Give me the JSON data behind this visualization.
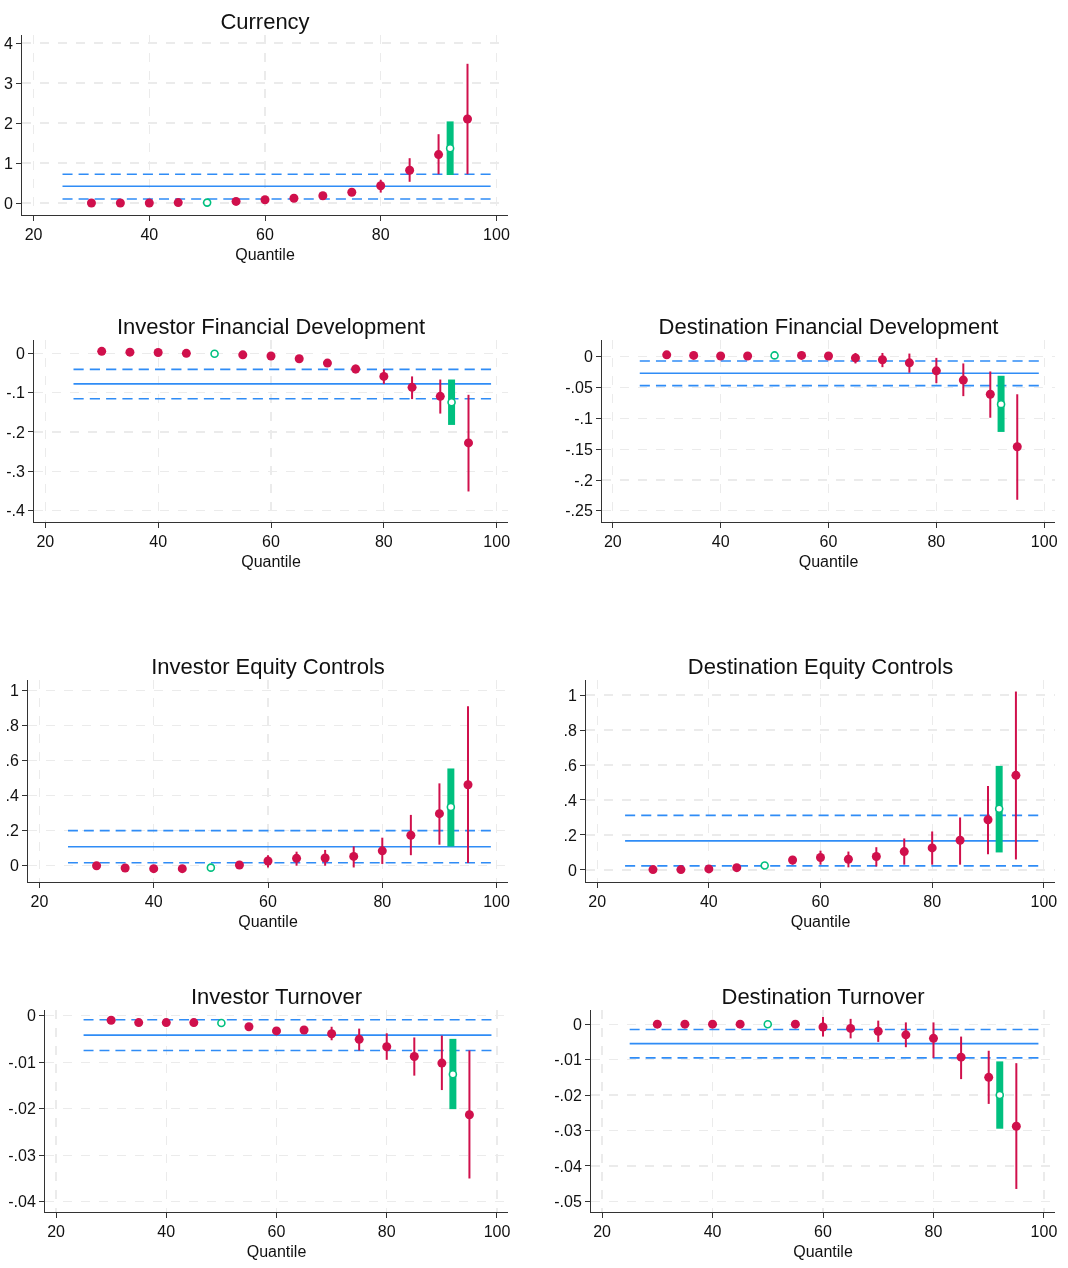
{
  "chart_data": [
    {
      "type": "scatter",
      "title": "Currency",
      "xlabel": "Quantile",
      "xlim": [
        18,
        102
      ],
      "xticks": [
        20,
        40,
        60,
        80,
        100
      ],
      "ylim": [
        -0.3,
        4.2
      ],
      "yticks": [
        0,
        1,
        2,
        3,
        4
      ],
      "grid": true,
      "marker": "circle",
      "series": [
        {
          "color": "#d0104c",
          "x": [
            30,
            35,
            40,
            45,
            55,
            60,
            65,
            70,
            75,
            80,
            85,
            90,
            95
          ],
          "values": [
            0,
            0,
            0,
            0.01,
            0.04,
            0.08,
            0.12,
            0.18,
            0.27,
            0.43,
            0.82,
            1.21,
            2.1
          ],
          "errors": [
            null,
            null,
            null,
            null,
            null,
            null,
            null,
            null,
            null,
            [
              0.26,
              0.58
            ],
            [
              0.53,
              1.12
            ],
            [
              0.72,
              1.72
            ],
            [
              0.72,
              3.48
            ]
          ]
        },
        {
          "color": "#00c07f",
          "x": [
            50,
            92
          ],
          "values": [
            0.01,
            1.37
          ],
          "errors": [
            null,
            [
              0.7,
              2.04
            ]
          ]
        },
        {
          "type": "line",
          "marker": "none",
          "color": "#2f8cf6",
          "line_style": "dashed",
          "x": [
            25,
            99
          ],
          "values": [
            0.72,
            0.72
          ]
        },
        {
          "type": "line",
          "marker": "none",
          "color": "#2f8cf6",
          "line_style": "solid",
          "x": [
            25,
            99
          ],
          "values": [
            0.42,
            0.42
          ]
        },
        {
          "type": "line",
          "marker": "none",
          "color": "#2f8cf6",
          "line_style": "dashed",
          "x": [
            25,
            99
          ],
          "values": [
            0.1,
            0.1
          ]
        }
      ]
    },
    {
      "type": "scatter",
      "title": "Investor Financial Development",
      "xlabel": "Quantile",
      "xlim": [
        18,
        102
      ],
      "xticks": [
        20,
        40,
        60,
        80,
        100
      ],
      "ylim": [
        -0.43,
        0.035
      ],
      "yticks": [
        0,
        {
          "value": -0.1,
          "label": "-.1"
        },
        {
          "value": -0.2,
          "label": "-.2"
        },
        {
          "value": -0.3,
          "label": "-.3"
        },
        {
          "value": -0.4,
          "label": "-.4"
        }
      ],
      "grid": true,
      "marker": "circle",
      "series": [
        {
          "color": "#d0104c",
          "x": [
            30,
            35,
            40,
            45,
            55,
            60,
            65,
            70,
            75,
            80,
            85,
            90,
            95
          ],
          "values": [
            0.006,
            0.004,
            0.003,
            0.001,
            -0.003,
            -0.006,
            -0.013,
            -0.024,
            -0.039,
            -0.058,
            -0.086,
            -0.109,
            -0.228
          ],
          "errors": [
            null,
            null,
            null,
            null,
            null,
            null,
            null,
            null,
            [
              -0.05,
              -0.028
            ],
            [
              -0.077,
              -0.04
            ],
            [
              -0.116,
              -0.058
            ],
            [
              -0.153,
              -0.066
            ],
            [
              -0.352,
              -0.105
            ]
          ]
        },
        {
          "color": "#00c07f",
          "x": [
            50,
            92
          ],
          "values": [
            0,
            -0.124
          ],
          "errors": [
            null,
            [
              -0.182,
              -0.066
            ]
          ]
        },
        {
          "type": "line",
          "marker": "none",
          "color": "#2f8cf6",
          "line_style": "dashed",
          "x": [
            25,
            99
          ],
          "values": [
            -0.04,
            -0.04
          ]
        },
        {
          "type": "line",
          "marker": "none",
          "color": "#2f8cf6",
          "line_style": "solid",
          "x": [
            25,
            99
          ],
          "values": [
            -0.077,
            -0.077
          ]
        },
        {
          "type": "line",
          "marker": "none",
          "color": "#2f8cf6",
          "line_style": "dashed",
          "x": [
            25,
            99
          ],
          "values": [
            -0.115,
            -0.115
          ]
        }
      ]
    },
    {
      "type": "scatter",
      "title": "Destination Financial Development",
      "xlabel": "Quantile",
      "xlim": [
        18,
        102
      ],
      "xticks": [
        20,
        40,
        60,
        80,
        100
      ],
      "ylim": [
        -0.268,
        0.027
      ],
      "yticks": [
        0,
        {
          "value": -0.05,
          "label": "-.05"
        },
        {
          "value": -0.1,
          "label": "-.1"
        },
        {
          "value": -0.15,
          "label": "-.15"
        },
        {
          "value": -0.2,
          "label": "-.2"
        },
        {
          "value": -0.25,
          "label": "-.25"
        }
      ],
      "grid": true,
      "marker": "circle",
      "series": [
        {
          "color": "#d0104c",
          "x": [
            30,
            35,
            40,
            45,
            55,
            60,
            65,
            70,
            75,
            80,
            85,
            90,
            95
          ],
          "values": [
            0.003,
            0.002,
            0.001,
            0.001,
            0.002,
            0.001,
            -0.002,
            -0.005,
            -0.01,
            -0.023,
            -0.038,
            -0.061,
            -0.146
          ],
          "errors": [
            null,
            null,
            null,
            null,
            null,
            null,
            [
              -0.011,
              0.006
            ],
            [
              -0.017,
              0.006
            ],
            [
              -0.026,
              0.005
            ],
            [
              -0.043,
              -0.002
            ],
            [
              -0.064,
              -0.011
            ],
            [
              -0.099,
              -0.024
            ],
            [
              -0.232,
              -0.061
            ]
          ]
        },
        {
          "color": "#00c07f",
          "x": [
            50,
            92
          ],
          "values": [
            0.002,
            -0.077
          ],
          "errors": [
            null,
            [
              -0.122,
              -0.031
            ]
          ]
        },
        {
          "type": "line",
          "marker": "none",
          "color": "#2f8cf6",
          "line_style": "dashed",
          "x": [
            25,
            99
          ],
          "values": [
            -0.007,
            -0.007
          ]
        },
        {
          "type": "line",
          "marker": "none",
          "color": "#2f8cf6",
          "line_style": "solid",
          "x": [
            25,
            99
          ],
          "values": [
            -0.027,
            -0.027
          ]
        },
        {
          "type": "line",
          "marker": "none",
          "color": "#2f8cf6",
          "line_style": "dashed",
          "x": [
            25,
            99
          ],
          "values": [
            -0.047,
            -0.047
          ]
        }
      ]
    },
    {
      "type": "scatter",
      "title": "Investor Equity Controls",
      "xlabel": "Quantile",
      "xlim": [
        18,
        102
      ],
      "xticks": [
        20,
        40,
        60,
        80,
        100
      ],
      "ylim": [
        -0.093,
        1.06
      ],
      "yticks": [
        0,
        {
          "value": 0.2,
          "label": ".2"
        },
        {
          "value": 0.4,
          "label": ".4"
        },
        {
          "value": 0.6,
          "label": ".6"
        },
        {
          "value": 0.8,
          "label": ".8"
        },
        1
      ],
      "grid": true,
      "marker": "circle",
      "series": [
        {
          "color": "#d0104c",
          "x": [
            30,
            35,
            40,
            45,
            55,
            60,
            65,
            70,
            75,
            80,
            85,
            90,
            95
          ],
          "values": [
            0,
            -0.013,
            -0.017,
            -0.017,
            0.004,
            0.027,
            0.042,
            0.044,
            0.053,
            0.085,
            0.174,
            0.297,
            0.462
          ],
          "errors": [
            null,
            null,
            null,
            null,
            null,
            [
              -0.01,
              0.06
            ],
            [
              0,
              0.08
            ],
            [
              0,
              0.09
            ],
            [
              -0.01,
              0.11
            ],
            [
              0.01,
              0.16
            ],
            [
              0.06,
              0.29
            ],
            [
              0.12,
              0.47
            ],
            [
              0.015,
              0.91
            ]
          ]
        },
        {
          "color": "#00c07f",
          "x": [
            50,
            92
          ],
          "values": [
            -0.011,
            0.335
          ],
          "errors": [
            null,
            [
              0.11,
              0.555
            ]
          ]
        },
        {
          "type": "line",
          "marker": "none",
          "color": "#2f8cf6",
          "line_style": "dashed",
          "x": [
            25,
            99
          ],
          "values": [
            0.2,
            0.2
          ]
        },
        {
          "type": "line",
          "marker": "none",
          "color": "#2f8cf6",
          "line_style": "solid",
          "x": [
            25,
            99
          ],
          "values": [
            0.108,
            0.108
          ]
        },
        {
          "type": "line",
          "marker": "none",
          "color": "#2f8cf6",
          "line_style": "dashed",
          "x": [
            25,
            99
          ],
          "values": [
            0.017,
            0.017
          ]
        }
      ]
    },
    {
      "type": "scatter",
      "title": "Destination Equity Controls",
      "xlabel": "Quantile",
      "xlim": [
        18,
        102
      ],
      "xticks": [
        20,
        40,
        60,
        80,
        100
      ],
      "ylim": [
        -0.069,
        1.086
      ],
      "yticks": [
        0,
        {
          "value": 0.2,
          "label": ".2"
        },
        {
          "value": 0.4,
          "label": ".4"
        },
        {
          "value": 0.6,
          "label": ".6"
        },
        {
          "value": 0.8,
          "label": ".8"
        },
        1
      ],
      "grid": true,
      "marker": "circle",
      "series": [
        {
          "color": "#d0104c",
          "x": [
            30,
            35,
            40,
            45,
            55,
            60,
            65,
            70,
            75,
            80,
            85,
            90,
            95
          ],
          "values": [
            0.002,
            0.002,
            0.006,
            0.013,
            0.057,
            0.071,
            0.061,
            0.077,
            0.105,
            0.126,
            0.17,
            0.287,
            0.541
          ],
          "errors": [
            null,
            null,
            null,
            null,
            [
              0.03,
              0.08
            ],
            [
              0.03,
              0.11
            ],
            [
              0.015,
              0.105
            ],
            [
              0.02,
              0.13
            ],
            [
              0.03,
              0.18
            ],
            [
              0.03,
              0.22
            ],
            [
              0.03,
              0.3
            ],
            [
              0.09,
              0.48
            ],
            [
              0.06,
              1.02
            ]
          ]
        },
        {
          "color": "#00c07f",
          "x": [
            50,
            92
          ],
          "values": [
            0.025,
            0.35
          ],
          "errors": [
            null,
            [
              0.1,
              0.595
            ]
          ]
        },
        {
          "type": "line",
          "marker": "none",
          "color": "#2f8cf6",
          "line_style": "dashed",
          "x": [
            25,
            99
          ],
          "values": [
            0.312,
            0.312
          ]
        },
        {
          "type": "line",
          "marker": "none",
          "color": "#2f8cf6",
          "line_style": "solid",
          "x": [
            25,
            99
          ],
          "values": [
            0.166,
            0.166
          ]
        },
        {
          "type": "line",
          "marker": "none",
          "color": "#2f8cf6",
          "line_style": "dashed",
          "x": [
            25,
            99
          ],
          "values": [
            0.023,
            0.023
          ]
        }
      ]
    },
    {
      "type": "scatter",
      "title": "Investor Turnover",
      "xlabel": "Quantile",
      "xlim": [
        18,
        102
      ],
      "xticks": [
        20,
        40,
        60,
        80,
        100
      ],
      "ylim": [
        -0.0422,
        0.0012
      ],
      "yticks": [
        0,
        {
          "value": -0.01,
          "label": "-.01"
        },
        {
          "value": -0.02,
          "label": "-.02"
        },
        {
          "value": -0.03,
          "label": "-.03"
        },
        {
          "value": -0.04,
          "label": "-.04"
        }
      ],
      "grid": true,
      "marker": "circle",
      "series": [
        {
          "color": "#d0104c",
          "x": [
            30,
            35,
            40,
            45,
            55,
            60,
            65,
            70,
            75,
            80,
            85,
            90,
            95
          ],
          "values": [
            -0.001,
            -0.0015,
            -0.0015,
            -0.0015,
            -0.0024,
            -0.0033,
            -0.0031,
            -0.0039,
            -0.0051,
            -0.0067,
            -0.0088,
            -0.0102,
            -0.0213
          ],
          "errors": [
            null,
            null,
            null,
            null,
            null,
            null,
            null,
            [
              -0.0053,
              -0.0024
            ],
            [
              -0.0075,
              -0.0028
            ],
            [
              -0.0095,
              -0.0038
            ],
            [
              -0.0129,
              -0.0047
            ],
            [
              -0.016,
              -0.0043
            ],
            [
              -0.035,
              -0.0075
            ]
          ]
        },
        {
          "color": "#00c07f",
          "x": [
            50,
            92
          ],
          "values": [
            -0.0016,
            -0.0126
          ],
          "errors": [
            null,
            [
              -0.0201,
              -0.005
            ]
          ]
        },
        {
          "type": "line",
          "marker": "none",
          "color": "#2f8cf6",
          "line_style": "dashed",
          "x": [
            25,
            99
          ],
          "values": [
            -0.0009,
            -0.0009
          ]
        },
        {
          "type": "line",
          "marker": "none",
          "color": "#2f8cf6",
          "line_style": "solid",
          "x": [
            25,
            99
          ],
          "values": [
            -0.0042,
            -0.0042
          ]
        },
        {
          "type": "line",
          "marker": "none",
          "color": "#2f8cf6",
          "line_style": "dashed",
          "x": [
            25,
            99
          ],
          "values": [
            -0.0075,
            -0.0075
          ]
        }
      ]
    },
    {
      "type": "scatter",
      "title": "Destination Turnover",
      "xlabel": "Quantile",
      "xlim": [
        18,
        102
      ],
      "xticks": [
        20,
        40,
        60,
        80,
        100
      ],
      "ylim": [
        -0.053,
        0.004
      ],
      "yticks": [
        0,
        {
          "value": -0.01,
          "label": "-.01"
        },
        {
          "value": -0.02,
          "label": "-.02"
        },
        {
          "value": -0.03,
          "label": "-.03"
        },
        {
          "value": -0.04,
          "label": "-.04"
        },
        {
          "value": -0.05,
          "label": "-.05"
        }
      ],
      "grid": true,
      "marker": "circle",
      "series": [
        {
          "color": "#d0104c",
          "x": [
            30,
            35,
            40,
            45,
            55,
            60,
            65,
            70,
            75,
            80,
            85,
            90,
            95
          ],
          "values": [
            0,
            0,
            0,
            0,
            0,
            -0.0008,
            -0.0012,
            -0.002,
            -0.003,
            -0.004,
            -0.0093,
            -0.015,
            -0.0288
          ],
          "errors": [
            null,
            null,
            null,
            null,
            [
              -0.001,
              0.001
            ],
            [
              -0.0035,
              0.002
            ],
            [
              -0.004,
              0.0015
            ],
            [
              -0.005,
              0.001
            ],
            [
              -0.0065,
              0.0005
            ],
            [
              -0.0095,
              0.0005
            ],
            [
              -0.0155,
              -0.0035
            ],
            [
              -0.0225,
              -0.0075
            ],
            [
              -0.0465,
              -0.011
            ]
          ]
        },
        {
          "color": "#00c07f",
          "x": [
            50,
            92
          ],
          "values": [
            0,
            -0.02
          ],
          "errors": [
            null,
            [
              -0.0295,
              -0.0105
            ]
          ]
        },
        {
          "type": "line",
          "marker": "none",
          "color": "#2f8cf6",
          "line_style": "dashed",
          "x": [
            25,
            99
          ],
          "values": [
            -0.0015,
            -0.0015
          ]
        },
        {
          "type": "line",
          "marker": "none",
          "color": "#2f8cf6",
          "line_style": "solid",
          "x": [
            25,
            99
          ],
          "values": [
            -0.0055,
            -0.0055
          ]
        },
        {
          "type": "line",
          "marker": "none",
          "color": "#2f8cf6",
          "line_style": "dashed",
          "x": [
            25,
            99
          ],
          "values": [
            -0.0095,
            -0.0095
          ]
        }
      ]
    }
  ]
}
